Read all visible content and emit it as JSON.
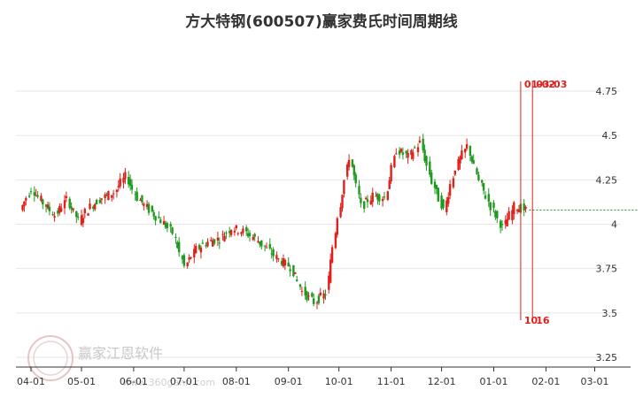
{
  "chart_data": {
    "type": "candlestick",
    "title": "方大特钢(600507)赢家费氏时间周期线",
    "x_tick_labels": [
      "04-01",
      "05-01",
      "06-01",
      "07-01",
      "08-01",
      "09-01",
      "10-01",
      "11-01",
      "12-01",
      "01-01",
      "02-01",
      "03-01"
    ],
    "y_tick_labels": [
      "3.25",
      "3.5",
      "3.75",
      "4",
      "4.25",
      "4.5",
      "4.75"
    ],
    "ylim": [
      3.22,
      4.84
    ],
    "grid": true,
    "colors": {
      "up": "#e0201a",
      "down": "#1f9a1f",
      "cycle_line": "#e02020",
      "last_price_line": "#1f9a1f",
      "grid": "#e6e6e6"
    },
    "last_price": 4.08,
    "cycle_lines": [
      {
        "top_label": "01-02",
        "bottom_label": "10",
        "x_date": "2024-01-17"
      },
      {
        "top_label": "03-03",
        "bottom_label": "16",
        "x_date": "2024-01-24"
      }
    ],
    "close_series": [
      [
        "2023-03-27",
        4.08
      ],
      [
        "2023-04-03",
        4.2
      ],
      [
        "2023-04-10",
        4.12
      ],
      [
        "2023-04-17",
        4.05
      ],
      [
        "2023-04-24",
        4.14
      ],
      [
        "2023-05-01",
        4.02
      ],
      [
        "2023-05-08",
        4.1
      ],
      [
        "2023-05-15",
        4.15
      ],
      [
        "2023-05-22",
        4.18
      ],
      [
        "2023-05-29",
        4.27
      ],
      [
        "2023-06-05",
        4.15
      ],
      [
        "2023-06-12",
        4.08
      ],
      [
        "2023-06-19",
        4.02
      ],
      [
        "2023-06-26",
        3.95
      ],
      [
        "2023-07-03",
        3.76
      ],
      [
        "2023-07-10",
        3.86
      ],
      [
        "2023-07-17",
        3.9
      ],
      [
        "2023-07-24",
        3.92
      ],
      [
        "2023-07-31",
        3.98
      ],
      [
        "2023-08-07",
        3.96
      ],
      [
        "2023-08-14",
        3.92
      ],
      [
        "2023-08-21",
        3.86
      ],
      [
        "2023-08-28",
        3.8
      ],
      [
        "2023-09-04",
        3.76
      ],
      [
        "2023-09-11",
        3.62
      ],
      [
        "2023-09-18",
        3.56
      ],
      [
        "2023-09-25",
        3.61
      ],
      [
        "2023-10-02",
        4.05
      ],
      [
        "2023-10-09",
        4.38
      ],
      [
        "2023-10-16",
        4.1
      ],
      [
        "2023-10-23",
        4.16
      ],
      [
        "2023-10-30",
        4.15
      ],
      [
        "2023-11-06",
        4.42
      ],
      [
        "2023-11-13",
        4.38
      ],
      [
        "2023-11-20",
        4.46
      ],
      [
        "2023-11-27",
        4.24
      ],
      [
        "2023-12-04",
        4.08
      ],
      [
        "2023-12-11",
        4.32
      ],
      [
        "2023-12-18",
        4.44
      ],
      [
        "2023-12-25",
        4.24
      ],
      [
        "2024-01-01",
        4.1
      ],
      [
        "2024-01-08",
        3.98
      ],
      [
        "2024-01-15",
        4.1
      ],
      [
        "2024-01-22",
        4.08
      ]
    ]
  },
  "watermark": {
    "brand": "赢家江恩软件",
    "url": "www.360gann.com"
  }
}
